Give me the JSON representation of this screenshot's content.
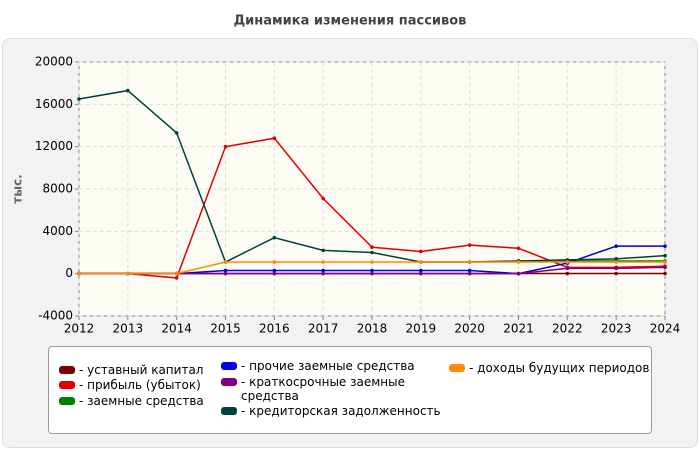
{
  "chart_data": {
    "type": "line",
    "title": "Динамика изменения пассивов",
    "ylabel": "тыс.",
    "x": [
      2012,
      2013,
      2014,
      2015,
      2016,
      2017,
      2018,
      2019,
      2020,
      2021,
      2022,
      2023,
      2024
    ],
    "xlim": [
      2012,
      2024
    ],
    "xticks": [
      2012,
      2013,
      2014,
      2015,
      2016,
      2017,
      2018,
      2019,
      2020,
      2021,
      2022,
      2023,
      2024
    ],
    "ylim": [
      -4000,
      20000
    ],
    "yticks": [
      -4000,
      0,
      4000,
      8000,
      12000,
      16000,
      20000
    ],
    "grid": true,
    "series": [
      {
        "name": "уставный капитал",
        "color": "#800000",
        "values": [
          10,
          10,
          10,
          10,
          10,
          10,
          10,
          10,
          10,
          10,
          10,
          10,
          10
        ]
      },
      {
        "name": "прибыль (убыток)",
        "color": "#e00000",
        "values": [
          0,
          0,
          -400,
          12000,
          12800,
          7100,
          2500,
          2100,
          2700,
          2400,
          600,
          600,
          700
        ]
      },
      {
        "name": "заемные средства",
        "color": "#008000",
        "values": [
          null,
          null,
          null,
          null,
          null,
          null,
          null,
          null,
          null,
          1200,
          1200,
          1200,
          1200
        ]
      },
      {
        "name": "прочие заемные средства",
        "color": "#0000e0",
        "values": [
          0,
          0,
          0,
          300,
          300,
          300,
          300,
          300,
          300,
          0,
          1000,
          2600,
          2600
        ]
      },
      {
        "name": "краткосрочные заемные средства",
        "color": "#800080",
        "values": [
          0,
          0,
          0,
          0,
          0,
          0,
          0,
          0,
          0,
          0,
          500,
          500,
          600
        ]
      },
      {
        "name": "кредиторская задолженность",
        "color": "#004040",
        "values": [
          16500,
          17300,
          13300,
          1100,
          3400,
          2200,
          2000,
          1100,
          1100,
          1200,
          1300,
          1400,
          1700
        ]
      },
      {
        "name": "доходы будущих периодов",
        "color": "#ff8c00",
        "values": [
          0,
          0,
          0,
          1100,
          1100,
          1100,
          1100,
          1100,
          1100,
          1100,
          1100,
          1100,
          1100
        ]
      }
    ]
  }
}
